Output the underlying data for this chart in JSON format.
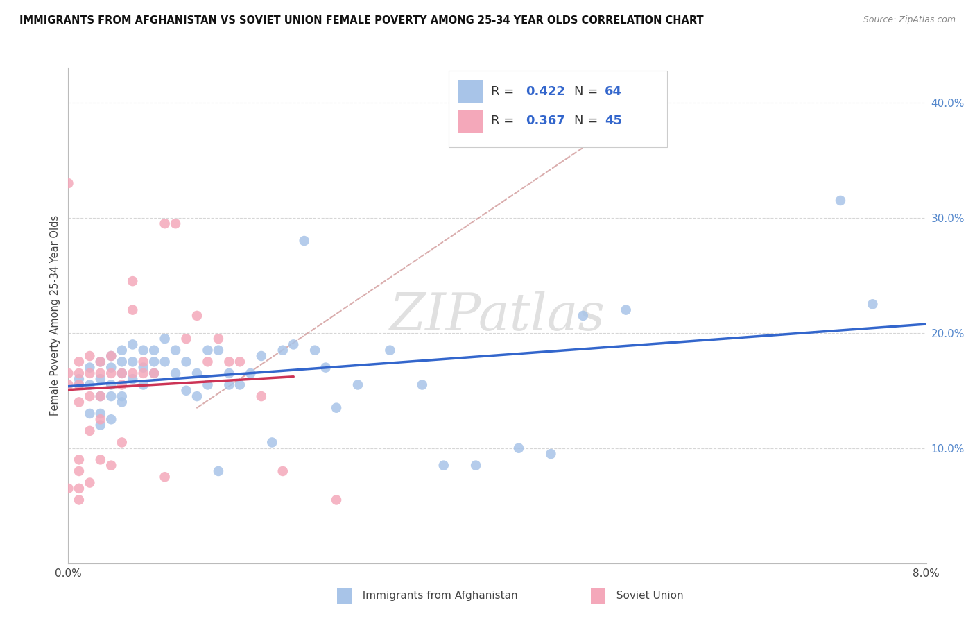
{
  "title": "IMMIGRANTS FROM AFGHANISTAN VS SOVIET UNION FEMALE POVERTY AMONG 25-34 YEAR OLDS CORRELATION CHART",
  "source": "Source: ZipAtlas.com",
  "ylabel": "Female Poverty Among 25-34 Year Olds",
  "xlim": [
    0.0,
    0.08
  ],
  "ylim": [
    0.0,
    0.43
  ],
  "r_afghanistan": 0.422,
  "n_afghanistan": 64,
  "r_soviet": 0.367,
  "n_soviet": 45,
  "color_afghanistan": "#a8c4e8",
  "color_soviet": "#f4a8ba",
  "trend_color_afghanistan": "#3366cc",
  "trend_color_soviet": "#cc3355",
  "trend_dash_color": "#d4a0a0",
  "watermark": "ZIPatlas",
  "background_color": "#ffffff",
  "grid_color": "#cccccc",
  "afghanistan_x": [
    0.001,
    0.001,
    0.002,
    0.002,
    0.002,
    0.003,
    0.003,
    0.003,
    0.003,
    0.003,
    0.004,
    0.004,
    0.004,
    0.004,
    0.004,
    0.005,
    0.005,
    0.005,
    0.005,
    0.005,
    0.006,
    0.006,
    0.006,
    0.007,
    0.007,
    0.007,
    0.008,
    0.008,
    0.008,
    0.009,
    0.009,
    0.01,
    0.01,
    0.011,
    0.011,
    0.012,
    0.012,
    0.013,
    0.013,
    0.014,
    0.014,
    0.015,
    0.015,
    0.016,
    0.017,
    0.018,
    0.019,
    0.02,
    0.021,
    0.022,
    0.023,
    0.024,
    0.025,
    0.027,
    0.03,
    0.033,
    0.035,
    0.038,
    0.042,
    0.045,
    0.048,
    0.052,
    0.072,
    0.075
  ],
  "afghanistan_y": [
    0.16,
    0.155,
    0.17,
    0.155,
    0.13,
    0.175,
    0.16,
    0.145,
    0.13,
    0.12,
    0.18,
    0.17,
    0.155,
    0.145,
    0.125,
    0.185,
    0.175,
    0.165,
    0.145,
    0.14,
    0.19,
    0.175,
    0.16,
    0.185,
    0.17,
    0.155,
    0.185,
    0.175,
    0.165,
    0.195,
    0.175,
    0.185,
    0.165,
    0.175,
    0.15,
    0.165,
    0.145,
    0.185,
    0.155,
    0.185,
    0.08,
    0.165,
    0.155,
    0.155,
    0.165,
    0.18,
    0.105,
    0.185,
    0.19,
    0.28,
    0.185,
    0.17,
    0.135,
    0.155,
    0.185,
    0.155,
    0.085,
    0.085,
    0.1,
    0.095,
    0.215,
    0.22,
    0.315,
    0.225
  ],
  "soviet_x": [
    0.0,
    0.0,
    0.0,
    0.001,
    0.001,
    0.001,
    0.001,
    0.001,
    0.001,
    0.001,
    0.001,
    0.002,
    0.002,
    0.002,
    0.002,
    0.002,
    0.003,
    0.003,
    0.003,
    0.003,
    0.003,
    0.004,
    0.004,
    0.004,
    0.005,
    0.005,
    0.005,
    0.006,
    0.006,
    0.006,
    0.007,
    0.007,
    0.008,
    0.009,
    0.009,
    0.01,
    0.011,
    0.012,
    0.013,
    0.014,
    0.015,
    0.016,
    0.018,
    0.02,
    0.025
  ],
  "soviet_y": [
    0.165,
    0.155,
    0.065,
    0.175,
    0.165,
    0.155,
    0.14,
    0.09,
    0.08,
    0.065,
    0.055,
    0.18,
    0.165,
    0.145,
    0.115,
    0.07,
    0.175,
    0.165,
    0.145,
    0.125,
    0.09,
    0.18,
    0.165,
    0.085,
    0.165,
    0.155,
    0.105,
    0.245,
    0.22,
    0.165,
    0.175,
    0.165,
    0.165,
    0.295,
    0.075,
    0.295,
    0.195,
    0.215,
    0.175,
    0.195,
    0.175,
    0.175,
    0.145,
    0.08,
    0.055
  ],
  "soviet_outlier_x": [
    0.0
  ],
  "soviet_outlier_y": [
    0.33
  ],
  "afg_trend_x0": 0.0,
  "afg_trend_x1": 0.08,
  "sov_trend_x0": 0.0,
  "sov_trend_x1": 0.021,
  "dash_line_x": [
    0.012,
    0.055
  ],
  "dash_line_y": [
    0.135,
    0.405
  ]
}
